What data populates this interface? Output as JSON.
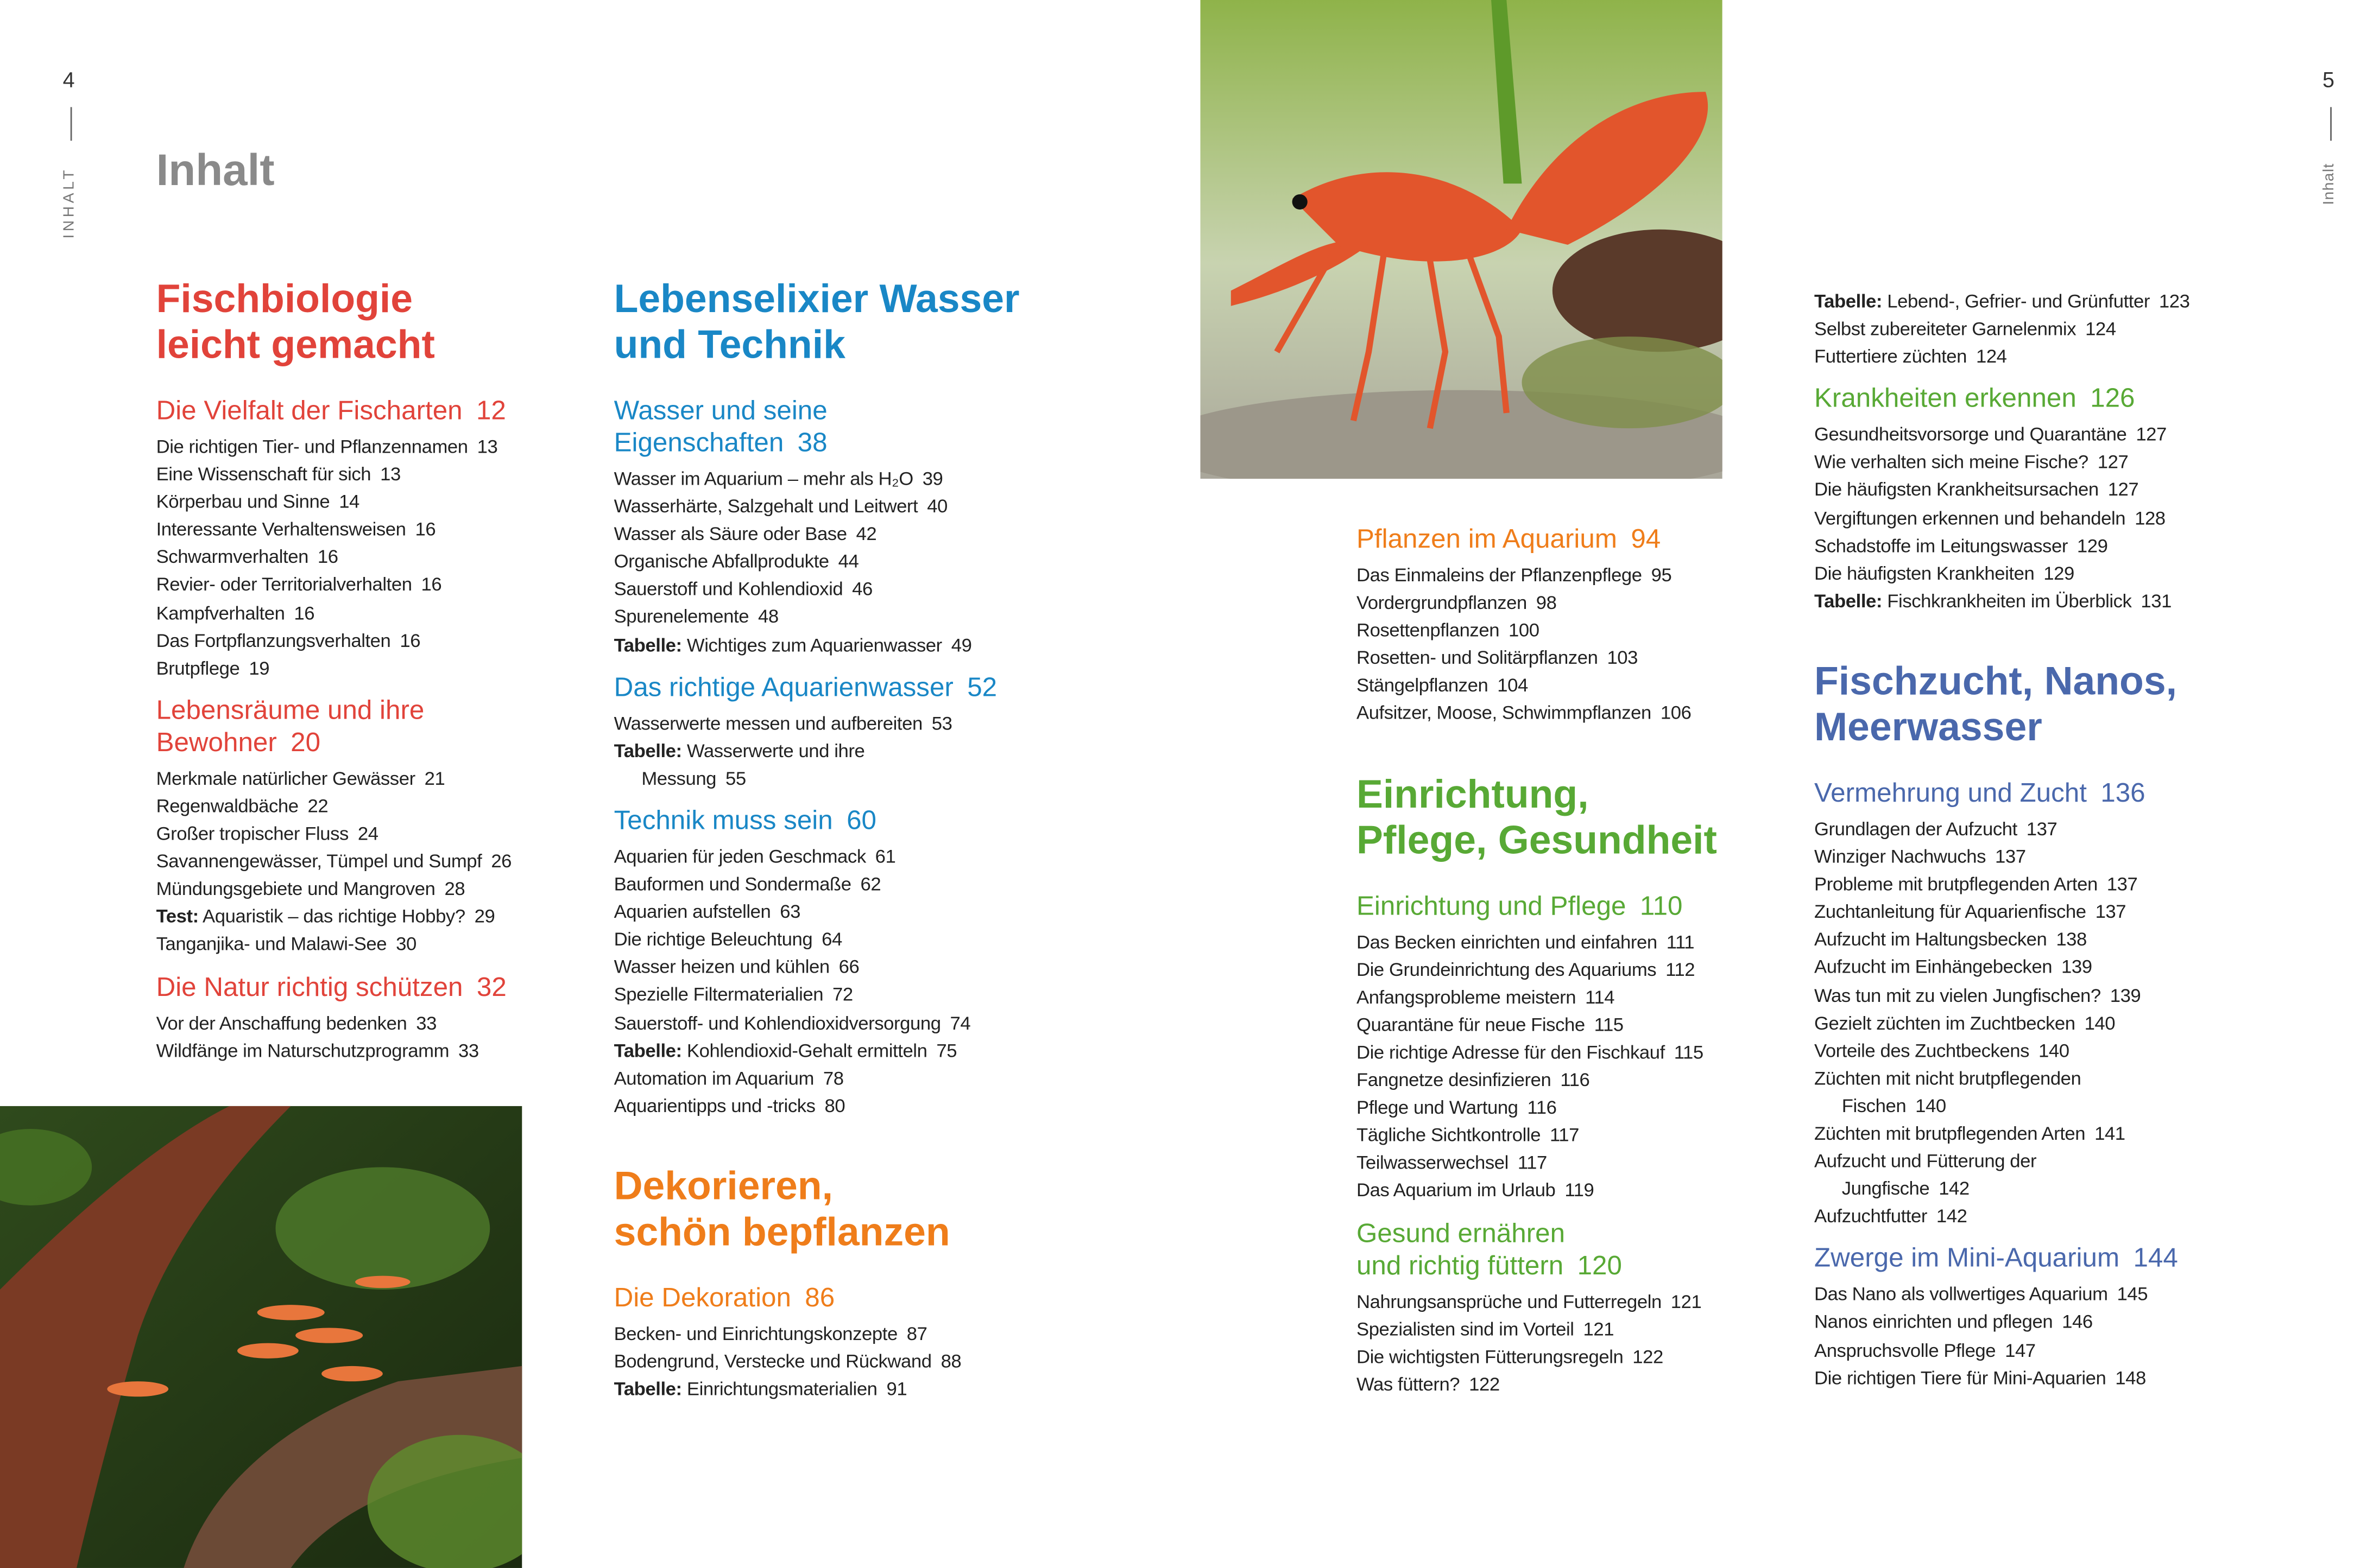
{
  "spread": {
    "left_page_number": "4",
    "right_page_number": "5",
    "left_running_head": "INHALT",
    "right_running_head": "Inhalt",
    "title": "Inhalt"
  },
  "themes": {
    "red": "#e1433a",
    "blue": "#1987c6",
    "orange": "#ef7d1a",
    "green": "#58a935",
    "indigo": "#4a68ac"
  },
  "images": {
    "left": "fish-tank-photo",
    "top": "crayfish-photo"
  },
  "columns": [
    {
      "blocks": [
        {
          "t": "c",
          "theme": "red",
          "lines": [
            "Fischbiologie",
            "leicht gemacht"
          ]
        },
        {
          "t": "s",
          "theme": "red",
          "lines": [
            "Die Vielfalt der Fischarten"
          ],
          "page": "12"
        },
        {
          "t": "i",
          "text": "Die richtigen Tier- und Pflanzennamen",
          "page": "13"
        },
        {
          "t": "i",
          "text": "Eine Wissenschaft für sich",
          "page": "13"
        },
        {
          "t": "i",
          "text": "Körperbau und Sinne",
          "page": "14"
        },
        {
          "t": "i",
          "text": "Interessante Verhaltensweisen",
          "page": "16"
        },
        {
          "t": "i",
          "text": "Schwarmverhalten",
          "page": "16"
        },
        {
          "t": "i",
          "text": "Revier- oder Territorialverhalten",
          "page": "16"
        },
        {
          "t": "i",
          "text": "Kampfverhalten",
          "page": "16"
        },
        {
          "t": "i",
          "text": "Das Fortpflanzungsverhalten",
          "page": "16"
        },
        {
          "t": "i",
          "text": "Brutpflege",
          "page": "19"
        },
        {
          "t": "s",
          "theme": "red",
          "lines": [
            "Lebensräume und ihre",
            "Bewohner"
          ],
          "page": "20"
        },
        {
          "t": "i",
          "text": "Merkmale natürlicher Gewässer",
          "page": "21"
        },
        {
          "t": "i",
          "text": "Regenwaldbäche",
          "page": "22"
        },
        {
          "t": "i",
          "text": "Großer tropischer Fluss",
          "page": "24"
        },
        {
          "t": "i",
          "text": "Savannengewässer, Tümpel und Sumpf",
          "page": "26"
        },
        {
          "t": "i",
          "text": "Mündungsgebiete und Mangroven",
          "page": "28"
        },
        {
          "t": "i",
          "bold": "Test:",
          "text": "Aquaristik – das richtige Hobby?",
          "page": "29"
        },
        {
          "t": "i",
          "text": "Tanganjika- und Malawi-See",
          "page": "30"
        },
        {
          "t": "s",
          "theme": "red",
          "lines": [
            "Die Natur richtig schützen"
          ],
          "page": "32"
        },
        {
          "t": "i",
          "text": "Vor der Anschaffung bedenken",
          "page": "33"
        },
        {
          "t": "i",
          "text": "Wildfänge im Naturschutzprogramm",
          "page": "33"
        }
      ]
    },
    {
      "blocks": [
        {
          "t": "c",
          "theme": "blue",
          "lines": [
            "Lebenselixier Wasser",
            "und Technik"
          ]
        },
        {
          "t": "s",
          "theme": "blue",
          "lines": [
            "Wasser und seine",
            "Eigenschaften"
          ],
          "page": "38"
        },
        {
          "t": "i",
          "text": "Wasser im Aquarium – mehr als H₂O",
          "page": "39"
        },
        {
          "t": "i",
          "text": "Wasserhärte, Salzgehalt und Leitwert",
          "page": "40"
        },
        {
          "t": "i",
          "text": "Wasser als Säure oder Base",
          "page": "42"
        },
        {
          "t": "i",
          "text": "Organische Abfallprodukte",
          "page": "44"
        },
        {
          "t": "i",
          "text": "Sauerstoff und Kohlendioxid",
          "page": "46"
        },
        {
          "t": "i",
          "text": "Spurenelemente",
          "page": "48"
        },
        {
          "t": "i",
          "bold": "Tabelle:",
          "text": "Wichtiges zum Aquarienwasser",
          "page": "49"
        },
        {
          "t": "s",
          "theme": "blue",
          "lines": [
            "Das richtige Aquarienwasser"
          ],
          "page": "52"
        },
        {
          "t": "i",
          "text": "Wasserwerte messen und aufbereiten",
          "page": "53"
        },
        {
          "t": "i",
          "bold": "Tabelle:",
          "text": "Wasserwerte und ihre"
        },
        {
          "t": "i",
          "indent": true,
          "text": "Messung",
          "page": "55"
        },
        {
          "t": "s",
          "theme": "blue",
          "lines": [
            "Technik muss sein"
          ],
          "page": "60"
        },
        {
          "t": "i",
          "text": "Aquarien für jeden Geschmack",
          "page": "61"
        },
        {
          "t": "i",
          "text": "Bauformen und Sondermaße",
          "page": "62"
        },
        {
          "t": "i",
          "text": "Aquarien aufstellen",
          "page": "63"
        },
        {
          "t": "i",
          "text": "Die richtige Beleuchtung",
          "page": "64"
        },
        {
          "t": "i",
          "text": "Wasser heizen und kühlen",
          "page": "66"
        },
        {
          "t": "i",
          "text": "Spezielle Filtermaterialien",
          "page": "72"
        },
        {
          "t": "i",
          "text": "Sauerstoff- und Kohlendioxidversorgung",
          "page": "74"
        },
        {
          "t": "i",
          "bold": "Tabelle:",
          "text": "Kohlendioxid-Gehalt ermitteln",
          "page": "75"
        },
        {
          "t": "i",
          "text": "Automation im Aquarium",
          "page": "78"
        },
        {
          "t": "i",
          "text": "Aquarientipps und -tricks",
          "page": "80"
        },
        {
          "t": "c",
          "theme": "orange",
          "lines": [
            "Dekorieren,",
            "schön bepflanzen"
          ]
        },
        {
          "t": "s",
          "theme": "orange",
          "lines": [
            "Die Dekoration"
          ],
          "page": "86"
        },
        {
          "t": "i",
          "text": "Becken- und Einrichtungskonzepte",
          "page": "87"
        },
        {
          "t": "i",
          "text": "Bodengrund, Verstecke und Rückwand",
          "page": "88"
        },
        {
          "t": "i",
          "bold": "Tabelle:",
          "text": "Einrichtungsmaterialien",
          "page": "91"
        }
      ]
    },
    {
      "blocks": [
        {
          "t": "s",
          "theme": "orange",
          "lines": [
            "Pflanzen im Aquarium"
          ],
          "page": "94"
        },
        {
          "t": "i",
          "text": "Das Einmaleins der Pflanzenpflege",
          "page": "95"
        },
        {
          "t": "i",
          "text": "Vordergrundpflanzen",
          "page": "98"
        },
        {
          "t": "i",
          "text": "Rosettenpflanzen",
          "page": "100"
        },
        {
          "t": "i",
          "text": "Rosetten- und Solitärpflanzen",
          "page": "103"
        },
        {
          "t": "i",
          "text": "Stängelpflanzen",
          "page": "104"
        },
        {
          "t": "i",
          "text": "Aufsitzer, Moose, Schwimmpflanzen",
          "page": "106"
        },
        {
          "t": "c",
          "theme": "green",
          "lines": [
            "Einrichtung,",
            "Pflege, Gesundheit"
          ]
        },
        {
          "t": "s",
          "theme": "green",
          "lines": [
            "Einrichtung und Pflege"
          ],
          "page": "110"
        },
        {
          "t": "i",
          "text": "Das Becken einrichten und einfahren",
          "page": "111"
        },
        {
          "t": "i",
          "text": "Die Grundeinrichtung des Aquariums",
          "page": "112"
        },
        {
          "t": "i",
          "text": "Anfangsprobleme meistern",
          "page": "114"
        },
        {
          "t": "i",
          "text": "Quarantäne für neue Fische",
          "page": "115"
        },
        {
          "t": "i",
          "text": "Die richtige Adresse für den Fischkauf",
          "page": "115"
        },
        {
          "t": "i",
          "text": "Fangnetze desinfizieren",
          "page": "116"
        },
        {
          "t": "i",
          "text": "Pflege und Wartung",
          "page": "116"
        },
        {
          "t": "i",
          "text": "Tägliche Sichtkontrolle",
          "page": "117"
        },
        {
          "t": "i",
          "text": "Teilwasserwechsel",
          "page": "117"
        },
        {
          "t": "i",
          "text": "Das Aquarium im Urlaub",
          "page": "119"
        },
        {
          "t": "s",
          "theme": "green",
          "lines": [
            "Gesund ernähren",
            "und richtig füttern"
          ],
          "page": "120"
        },
        {
          "t": "i",
          "text": "Nahrungsansprüche und Futterregeln",
          "page": "121"
        },
        {
          "t": "i",
          "text": "Spezialisten sind im Vorteil",
          "page": "121"
        },
        {
          "t": "i",
          "text": "Die wichtigsten Fütterungsregeln",
          "page": "122"
        },
        {
          "t": "i",
          "text": "Was füttern?",
          "page": "122"
        }
      ]
    },
    {
      "blocks": [
        {
          "t": "i",
          "bold": "Tabelle:",
          "text": "Lebend-, Gefrier- und Grünfutter",
          "page": "123"
        },
        {
          "t": "i",
          "text": "Selbst zubereiteter Garnelenmix",
          "page": "124"
        },
        {
          "t": "i",
          "text": "Futtertiere züchten",
          "page": "124"
        },
        {
          "t": "s",
          "theme": "green",
          "lines": [
            "Krankheiten erkennen"
          ],
          "page": "126"
        },
        {
          "t": "i",
          "text": "Gesundheitsvorsorge und Quarantäne",
          "page": "127"
        },
        {
          "t": "i",
          "text": "Wie verhalten sich meine Fische?",
          "page": "127"
        },
        {
          "t": "i",
          "text": "Die häufigsten Krankheitsursachen",
          "page": "127"
        },
        {
          "t": "i",
          "text": "Vergiftungen erkennen und behandeln",
          "page": "128"
        },
        {
          "t": "i",
          "text": "Schadstoffe im Leitungswasser",
          "page": "129"
        },
        {
          "t": "i",
          "text": "Die häufigsten Krankheiten",
          "page": "129"
        },
        {
          "t": "i",
          "bold": "Tabelle:",
          "text": "Fischkrankheiten im Überblick",
          "page": "131"
        },
        {
          "t": "c",
          "theme": "indigo",
          "lines": [
            "Fischzucht, Nanos,",
            "Meerwasser"
          ]
        },
        {
          "t": "s",
          "theme": "indigo",
          "lines": [
            "Vermehrung und Zucht"
          ],
          "page": "136"
        },
        {
          "t": "i",
          "text": "Grundlagen der Aufzucht",
          "page": "137"
        },
        {
          "t": "i",
          "text": "Winziger Nachwuchs",
          "page": "137"
        },
        {
          "t": "i",
          "text": "Probleme mit brutpflegenden Arten",
          "page": "137"
        },
        {
          "t": "i",
          "text": "Zuchtanleitung für Aquarienfische",
          "page": "137"
        },
        {
          "t": "i",
          "text": "Aufzucht im Haltungsbecken",
          "page": "138"
        },
        {
          "t": "i",
          "text": "Aufzucht im Einhängebecken",
          "page": "139"
        },
        {
          "t": "i",
          "text": "Was tun mit zu vielen Jungfischen?",
          "page": "139"
        },
        {
          "t": "i",
          "text": "Gezielt züchten im Zuchtbecken",
          "page": "140"
        },
        {
          "t": "i",
          "text": "Vorteile des Zuchtbeckens",
          "page": "140"
        },
        {
          "t": "i",
          "text": "Züchten mit nicht brutpflegenden"
        },
        {
          "t": "i",
          "indent": true,
          "text": "Fischen",
          "page": "140"
        },
        {
          "t": "i",
          "text": "Züchten mit brutpflegenden Arten",
          "page": "141"
        },
        {
          "t": "i",
          "text": "Aufzucht und Fütterung der"
        },
        {
          "t": "i",
          "indent": true,
          "text": "Jungfische",
          "page": "142"
        },
        {
          "t": "i",
          "text": "Aufzuchtfutter",
          "page": "142"
        },
        {
          "t": "s",
          "theme": "indigo",
          "lines": [
            "Zwerge im Mini-Aquarium"
          ],
          "page": "144"
        },
        {
          "t": "i",
          "text": "Das Nano als vollwertiges Aquarium",
          "page": "145"
        },
        {
          "t": "i",
          "text": "Nanos einrichten und pflegen",
          "page": "146"
        },
        {
          "t": "i",
          "text": "Anspruchsvolle Pflege",
          "page": "147"
        },
        {
          "t": "i",
          "text": "Die richtigen Tiere für Mini-Aquarien",
          "page": "148"
        }
      ]
    }
  ]
}
